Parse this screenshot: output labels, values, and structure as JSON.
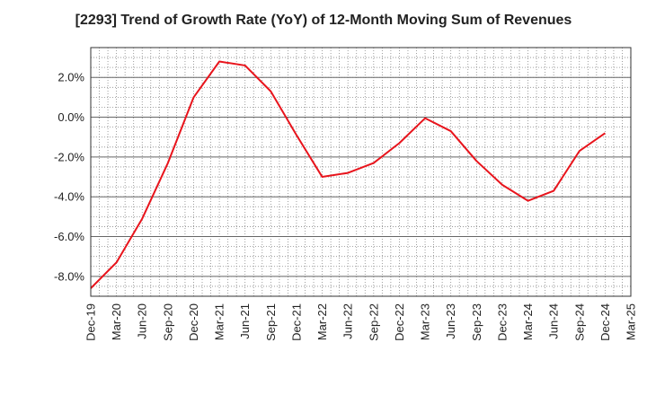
{
  "chart_data": {
    "type": "line",
    "title": "[2293]  Trend of Growth Rate (YoY) of 12-Month Moving Sum of Revenues",
    "xlabel": "",
    "ylabel": "",
    "x_tick_labels": [
      "Dec-19",
      "Mar-20",
      "Jun-20",
      "Sep-20",
      "Dec-20",
      "Mar-21",
      "Jun-21",
      "Sep-21",
      "Dec-21",
      "Mar-22",
      "Jun-22",
      "Sep-22",
      "Dec-22",
      "Mar-23",
      "Jun-23",
      "Sep-23",
      "Dec-23",
      "Mar-24",
      "Jun-24",
      "Sep-24",
      "Dec-24",
      "Mar-25"
    ],
    "y_tick_labels": [
      "2.0%",
      "0.0%",
      "-2.0%",
      "-4.0%",
      "-6.0%",
      "-8.0%"
    ],
    "y_tick_values": [
      2,
      0,
      -2,
      -4,
      -6,
      -8
    ],
    "ylim": [
      -9,
      3.5
    ],
    "grid": true,
    "series": [
      {
        "color": "#e8141c",
        "x": [
          "Dec-19",
          "Mar-20",
          "Jun-20",
          "Sep-20",
          "Dec-20",
          "Mar-21",
          "Jun-21",
          "Sep-21",
          "Dec-21",
          "Mar-22",
          "Jun-22",
          "Sep-22",
          "Dec-22",
          "Mar-23",
          "Jun-23",
          "Sep-23",
          "Dec-23",
          "Mar-24",
          "Jun-24",
          "Sep-24",
          "Dec-24"
        ],
        "values": [
          -8.6,
          -7.3,
          -5.1,
          -2.3,
          1.0,
          2.8,
          2.6,
          1.3,
          -0.9,
          -3.0,
          -2.8,
          -2.3,
          -1.3,
          -0.05,
          -0.7,
          -2.2,
          -3.4,
          -4.2,
          -3.7,
          -1.7,
          -0.8
        ]
      }
    ]
  }
}
